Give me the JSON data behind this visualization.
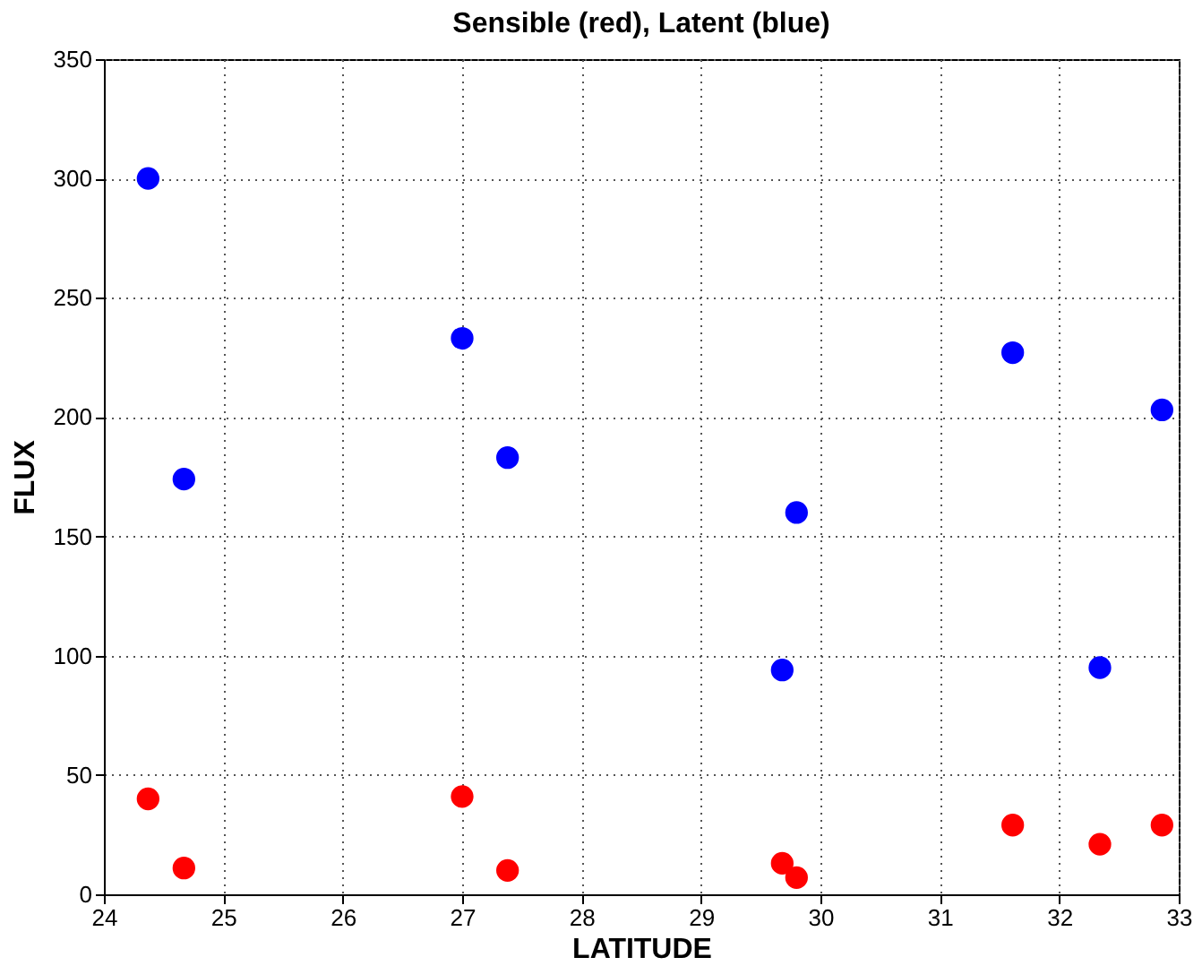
{
  "chart_data": {
    "type": "scatter",
    "title": "Sensible (red), Latent (blue)",
    "xlabel": "LATITUDE",
    "ylabel": "FLUX",
    "series": [
      {
        "color": "#ff0000",
        "x": [
          24.37,
          24.67,
          27.0,
          27.38,
          29.68,
          29.8,
          31.61,
          32.34,
          32.86
        ],
        "values": [
          40,
          11,
          41,
          10,
          13,
          7,
          29,
          21,
          29
        ]
      },
      {
        "color": "#0000ff",
        "x": [
          24.37,
          24.67,
          27.0,
          27.38,
          29.68,
          29.8,
          31.61,
          32.34,
          32.86
        ],
        "values": [
          300,
          174,
          233,
          183,
          94,
          160,
          227,
          95,
          203
        ]
      }
    ],
    "xlim": [
      24,
      33
    ],
    "xticks": [
      24,
      25,
      26,
      27,
      28,
      29,
      30,
      31,
      32,
      33
    ],
    "ylim": [
      0,
      350
    ],
    "yticks": [
      0,
      50,
      100,
      150,
      200,
      250,
      300,
      350
    ],
    "grid": true,
    "marker": "circle"
  }
}
